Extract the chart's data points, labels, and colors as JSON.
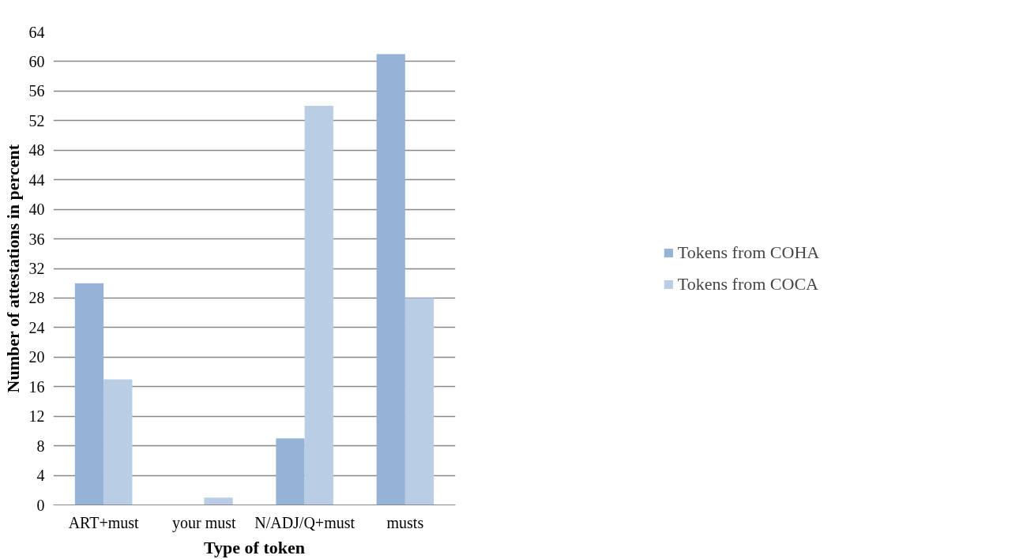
{
  "chart_data": {
    "type": "bar",
    "xlabel": "Type of token",
    "ylabel": "Number of attestations in percent",
    "categories": [
      "ART+must",
      "your must",
      "N/ADJ/Q+must",
      "musts"
    ],
    "series": [
      {
        "name": "Tokens from COHA",
        "color": "#95b3d7",
        "values": [
          30,
          0,
          9,
          61
        ]
      },
      {
        "name": "Tokens from COCA",
        "color": "#b9cde5",
        "values": [
          17,
          1,
          54,
          28
        ]
      }
    ],
    "ylim": [
      0,
      64
    ],
    "yticks": [
      0,
      4,
      8,
      12,
      16,
      20,
      24,
      28,
      32,
      36,
      40,
      44,
      48,
      52,
      56,
      60,
      64
    ],
    "grid": "y",
    "legend": "right"
  }
}
